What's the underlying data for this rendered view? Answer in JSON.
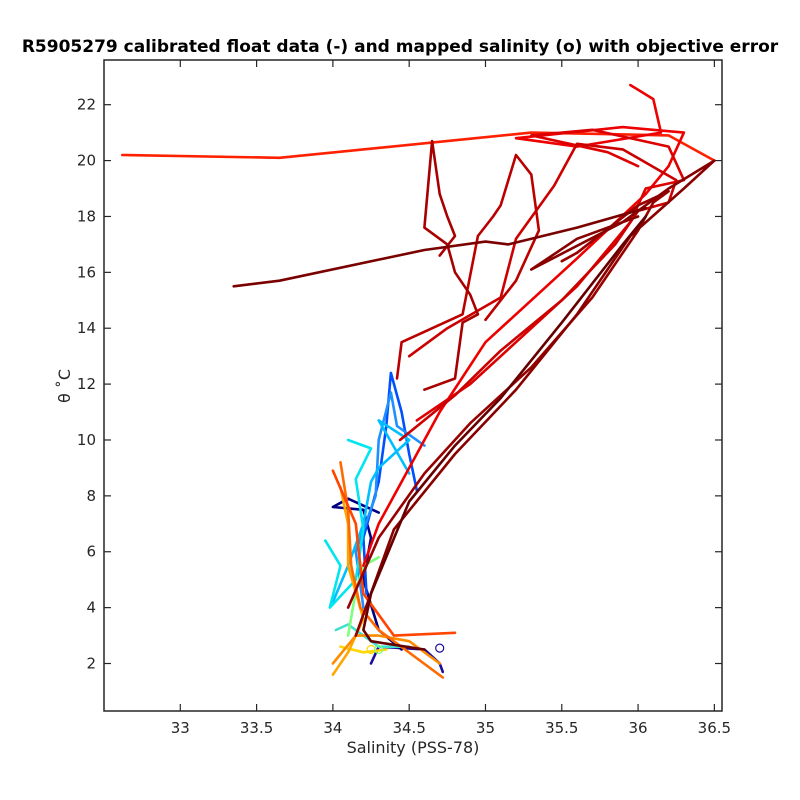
{
  "chart_data": {
    "type": "line",
    "title": "R5905279 calibrated float data (-) and mapped salinity (o) with objective error",
    "xlabel": "Salinity (PSS-78)",
    "ylabel": "θ ˚C",
    "xlim": [
      32.5,
      36.55
    ],
    "ylim": [
      0.3,
      23.6
    ],
    "xticks": [
      33,
      33.5,
      34,
      34.5,
      35,
      35.5,
      36,
      36.5
    ],
    "yticks": [
      2,
      4,
      6,
      8,
      10,
      12,
      14,
      16,
      18,
      20,
      22
    ],
    "xtick_labels": [
      "33",
      "33.5",
      "34",
      "34.5",
      "35",
      "35.5",
      "36",
      "36.5"
    ],
    "ytick_labels": [
      "2",
      "4",
      "6",
      "8",
      "10",
      "12",
      "14",
      "16",
      "18",
      "20",
      "22"
    ],
    "grid": false,
    "box": true,
    "series": [
      {
        "color": "#1a0d99",
        "points": [
          [
            34.25,
            2.0
          ],
          [
            34.3,
            2.6
          ],
          [
            34.6,
            2.5
          ],
          [
            34.7,
            2.0
          ],
          [
            34.72,
            1.7
          ]
        ]
      },
      {
        "color": "#000080",
        "points": [
          [
            34.45,
            2.5
          ],
          [
            34.3,
            3.2
          ],
          [
            34.2,
            5.0
          ],
          [
            34.25,
            6.5
          ],
          [
            34.2,
            7.5
          ],
          [
            34.0,
            7.6
          ],
          [
            34.1,
            7.9
          ],
          [
            34.3,
            7.4
          ]
        ]
      },
      {
        "color": "#0050ff",
        "points": [
          [
            34.22,
            4.5
          ],
          [
            34.2,
            6.5
          ],
          [
            34.3,
            8.5
          ],
          [
            34.35,
            10.5
          ],
          [
            34.38,
            12.4
          ],
          [
            34.45,
            11.0
          ],
          [
            34.5,
            9.5
          ],
          [
            34.55,
            8.2
          ]
        ]
      },
      {
        "color": "#1e90ff",
        "points": [
          [
            34.2,
            4.0
          ],
          [
            34.15,
            6.0
          ],
          [
            34.28,
            8.0
          ],
          [
            34.3,
            10.0
          ],
          [
            34.38,
            11.7
          ],
          [
            34.42,
            10.5
          ],
          [
            34.6,
            9.8
          ]
        ]
      },
      {
        "color": "#00bfff",
        "points": [
          [
            34.0,
            4.2
          ],
          [
            34.1,
            5.5
          ],
          [
            34.2,
            7.0
          ],
          [
            34.25,
            8.5
          ],
          [
            34.3,
            9.0
          ],
          [
            34.5,
            10.0
          ],
          [
            34.3,
            10.7
          ],
          [
            34.5,
            8.8
          ]
        ]
      },
      {
        "color": "#00e5ee",
        "points": [
          [
            33.95,
            6.4
          ],
          [
            34.05,
            5.5
          ],
          [
            33.98,
            4.0
          ],
          [
            34.15,
            5.0
          ],
          [
            34.2,
            6.8
          ],
          [
            34.15,
            8.6
          ],
          [
            34.25,
            9.7
          ],
          [
            34.1,
            10.0
          ]
        ]
      },
      {
        "color": "#40e0d0",
        "points": [
          [
            34.02,
            3.2
          ],
          [
            34.1,
            3.4
          ],
          [
            34.3,
            2.6
          ],
          [
            34.5,
            2.6
          ]
        ]
      },
      {
        "color": "#7fff7f",
        "points": [
          [
            34.1,
            3.0
          ],
          [
            34.15,
            4.6
          ],
          [
            34.2,
            5.5
          ],
          [
            34.3,
            5.8
          ]
        ]
      },
      {
        "color": "#ffd700",
        "points": [
          [
            34.05,
            2.6
          ],
          [
            34.2,
            2.4
          ],
          [
            34.35,
            2.5
          ]
        ]
      },
      {
        "color": "#ffa500",
        "points": [
          [
            34.0,
            1.6
          ],
          [
            34.1,
            2.4
          ],
          [
            34.2,
            3.6
          ],
          [
            34.1,
            5.5
          ],
          [
            34.1,
            7.0
          ],
          [
            34.05,
            8.3
          ]
        ]
      },
      {
        "color": "#ff8c00",
        "points": [
          [
            34.0,
            2.0
          ],
          [
            34.15,
            3.0
          ],
          [
            34.3,
            3.0
          ],
          [
            34.5,
            2.8
          ],
          [
            34.7,
            2.0
          ]
        ]
      },
      {
        "color": "#ff6a00",
        "points": [
          [
            34.05,
            9.2
          ],
          [
            34.1,
            7.5
          ],
          [
            34.12,
            5.5
          ],
          [
            34.18,
            4.0
          ],
          [
            34.3,
            3.2
          ],
          [
            34.72,
            1.5
          ]
        ]
      },
      {
        "color": "#ff4500",
        "points": [
          [
            34.0,
            8.9
          ],
          [
            34.15,
            7.0
          ],
          [
            34.2,
            4.5
          ],
          [
            34.4,
            3.0
          ],
          [
            34.8,
            3.1
          ]
        ]
      },
      {
        "color": "#ff2000",
        "points": [
          [
            32.62,
            20.2
          ],
          [
            33.65,
            20.1
          ],
          [
            35.3,
            21.0
          ],
          [
            36.2,
            20.9
          ],
          [
            36.5,
            20.0
          ]
        ]
      },
      {
        "color": "#ee0000",
        "points": [
          [
            35.95,
            22.7
          ],
          [
            36.1,
            22.2
          ],
          [
            36.15,
            21.0
          ],
          [
            35.6,
            20.5
          ],
          [
            35.2,
            20.8
          ],
          [
            35.9,
            21.2
          ],
          [
            36.3,
            21.0
          ],
          [
            36.2,
            19.8
          ],
          [
            36.05,
            18.8
          ],
          [
            35.6,
            16.5
          ],
          [
            35.0,
            13.5
          ],
          [
            34.7,
            11.0
          ],
          [
            34.5,
            9.0
          ],
          [
            34.3,
            7.0
          ],
          [
            34.2,
            5.5
          ]
        ]
      },
      {
        "color": "#dd0000",
        "points": [
          [
            34.55,
            10.7
          ],
          [
            34.9,
            12.0
          ],
          [
            35.2,
            13.5
          ],
          [
            35.6,
            15.5
          ],
          [
            35.95,
            17.8
          ],
          [
            36.05,
            19.0
          ],
          [
            36.3,
            19.3
          ],
          [
            36.2,
            20.5
          ],
          [
            35.7,
            21.1
          ],
          [
            35.3,
            20.9
          ],
          [
            35.8,
            20.3
          ],
          [
            36.0,
            19.8
          ]
        ]
      },
      {
        "color": "#cc0000",
        "points": [
          [
            34.44,
            10.0
          ],
          [
            34.8,
            11.6
          ],
          [
            35.1,
            13.2
          ],
          [
            35.5,
            15.0
          ],
          [
            35.85,
            17.0
          ],
          [
            36.0,
            18.2
          ],
          [
            36.2,
            18.5
          ],
          [
            36.25,
            19.3
          ],
          [
            35.9,
            20.4
          ],
          [
            35.6,
            20.6
          ],
          [
            35.45,
            19.1
          ],
          [
            35.2,
            17.2
          ],
          [
            35.1,
            15.1
          ],
          [
            34.75,
            14.0
          ],
          [
            34.5,
            13.0
          ]
        ]
      },
      {
        "color": "#bb0000",
        "points": [
          [
            34.42,
            12.2
          ],
          [
            34.45,
            13.5
          ],
          [
            34.85,
            14.5
          ],
          [
            34.95,
            17.3
          ],
          [
            35.05,
            18.0
          ],
          [
            35.1,
            18.4
          ],
          [
            35.2,
            20.2
          ],
          [
            35.3,
            19.5
          ],
          [
            35.35,
            17.5
          ],
          [
            35.2,
            15.7
          ],
          [
            35.0,
            14.3
          ]
        ]
      },
      {
        "color": "#a80000",
        "points": [
          [
            34.6,
            11.8
          ],
          [
            34.8,
            12.2
          ],
          [
            34.85,
            14.2
          ],
          [
            34.95,
            14.5
          ],
          [
            34.9,
            15.2
          ],
          [
            34.8,
            16.0
          ],
          [
            34.75,
            17.0
          ],
          [
            34.6,
            17.6
          ],
          [
            34.65,
            20.7
          ],
          [
            34.7,
            18.8
          ],
          [
            34.75,
            18.0
          ],
          [
            34.8,
            17.3
          ],
          [
            34.7,
            16.6
          ]
        ]
      },
      {
        "color": "#990000",
        "points": [
          [
            34.1,
            4.0
          ],
          [
            34.3,
            6.5
          ],
          [
            34.6,
            8.8
          ],
          [
            34.9,
            10.6
          ],
          [
            35.3,
            12.6
          ],
          [
            35.7,
            15.1
          ],
          [
            36.0,
            17.5
          ],
          [
            36.1,
            18.5
          ],
          [
            36.2,
            18.9
          ],
          [
            36.0,
            18.4
          ],
          [
            35.6,
            16.7
          ],
          [
            35.5,
            16.4
          ]
        ]
      },
      {
        "color": "#880000",
        "points": [
          [
            34.15,
            3.0
          ],
          [
            34.4,
            6.8
          ],
          [
            34.8,
            9.5
          ],
          [
            35.2,
            11.8
          ],
          [
            35.6,
            14.5
          ],
          [
            35.95,
            17.3
          ],
          [
            36.3,
            19.0
          ],
          [
            36.5,
            20.0
          ],
          [
            36.2,
            19.0
          ],
          [
            35.9,
            17.8
          ],
          [
            35.3,
            16.1
          ],
          [
            35.6,
            17.2
          ],
          [
            36.0,
            18.0
          ]
        ]
      },
      {
        "color": "#7a0000",
        "points": [
          [
            33.35,
            15.5
          ],
          [
            33.65,
            15.7
          ],
          [
            34.6,
            16.8
          ],
          [
            35.0,
            17.1
          ],
          [
            35.15,
            17.0
          ],
          [
            35.6,
            17.6
          ],
          [
            36.05,
            18.3
          ]
        ]
      },
      {
        "color": "#660000",
        "points": [
          [
            34.6,
            2.5
          ],
          [
            34.25,
            2.8
          ],
          [
            34.2,
            3.2
          ],
          [
            34.25,
            4.5
          ],
          [
            34.5,
            7.8
          ],
          [
            34.8,
            9.8
          ],
          [
            35.1,
            11.5
          ],
          [
            35.5,
            14.2
          ],
          [
            35.9,
            17.0
          ],
          [
            36.05,
            18.0
          ]
        ]
      }
    ],
    "mapped_points": [
      {
        "color": "#1a0d99",
        "s": 34.7,
        "t": 2.55
      },
      {
        "color": "#ffd700",
        "s": 34.25,
        "t": 2.5
      },
      {
        "color": "#7fff7f",
        "s": 34.3,
        "t": 2.5
      }
    ]
  }
}
